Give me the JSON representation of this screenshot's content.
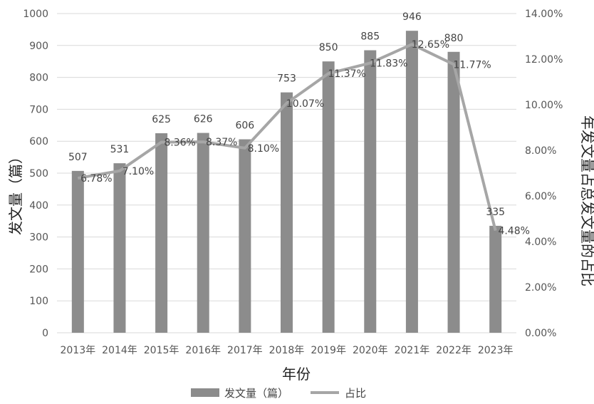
{
  "chart_data": {
    "type": "bar+line",
    "title": "",
    "xlabel": "年份",
    "ylabel": "发文量（篇）",
    "y2label": "年发文量占总发文量的占比",
    "categories": [
      "2013年",
      "2014年",
      "2015年",
      "2016年",
      "2017年",
      "2018年",
      "2019年",
      "2020年",
      "2021年",
      "2022年",
      "2023年"
    ],
    "series": [
      {
        "name": "发文量（篇）",
        "type": "bar",
        "axis": "left",
        "values": [
          507,
          531,
          625,
          626,
          606,
          753,
          850,
          885,
          946,
          880,
          335
        ],
        "labels": [
          "507",
          "531",
          "625",
          "626",
          "606",
          "753",
          "850",
          "885",
          "946",
          "880",
          "335"
        ],
        "color": "#8c8c8c"
      },
      {
        "name": "占比",
        "type": "line",
        "axis": "right",
        "values": [
          6.78,
          7.1,
          8.36,
          8.37,
          8.1,
          10.07,
          11.37,
          11.83,
          12.65,
          11.77,
          4.48
        ],
        "labels": [
          "6.78%",
          "7.10%",
          "8.36%",
          "8.37%",
          "8.10%",
          "10.07%",
          "11.37%",
          "11.83%",
          "12.65%",
          "11.77%",
          "4.48%"
        ],
        "color": "#a6a6a6"
      }
    ],
    "ylim": [
      0,
      1000
    ],
    "yticks": [
      "0",
      "100",
      "200",
      "300",
      "400",
      "500",
      "600",
      "700",
      "800",
      "900",
      "1000"
    ],
    "y2lim": [
      0,
      14
    ],
    "y2ticks": [
      "0.00%",
      "2.00%",
      "4.00%",
      "6.00%",
      "8.00%",
      "10.00%",
      "12.00%",
      "14.00%"
    ],
    "grid": true,
    "legend": "bottom"
  }
}
